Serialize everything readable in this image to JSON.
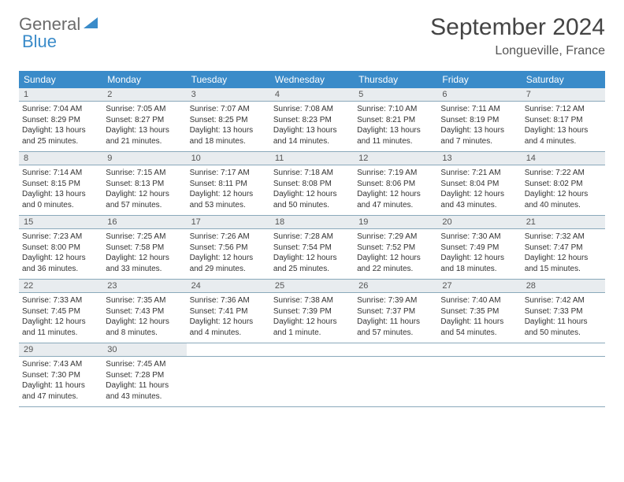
{
  "logo": {
    "text1": "General",
    "text2": "Blue"
  },
  "title": "September 2024",
  "location": "Longueville, France",
  "colors": {
    "header_bg": "#3a8bc9",
    "header_text": "#ffffff",
    "daynum_bg": "#e8ecef",
    "border": "#8aa9bb",
    "body_text": "#333333"
  },
  "day_headers": [
    "Sunday",
    "Monday",
    "Tuesday",
    "Wednesday",
    "Thursday",
    "Friday",
    "Saturday"
  ],
  "weeks": [
    [
      {
        "n": "1",
        "sunrise": "7:04 AM",
        "sunset": "8:29 PM",
        "dl1": "Daylight: 13 hours",
        "dl2": "and 25 minutes."
      },
      {
        "n": "2",
        "sunrise": "7:05 AM",
        "sunset": "8:27 PM",
        "dl1": "Daylight: 13 hours",
        "dl2": "and 21 minutes."
      },
      {
        "n": "3",
        "sunrise": "7:07 AM",
        "sunset": "8:25 PM",
        "dl1": "Daylight: 13 hours",
        "dl2": "and 18 minutes."
      },
      {
        "n": "4",
        "sunrise": "7:08 AM",
        "sunset": "8:23 PM",
        "dl1": "Daylight: 13 hours",
        "dl2": "and 14 minutes."
      },
      {
        "n": "5",
        "sunrise": "7:10 AM",
        "sunset": "8:21 PM",
        "dl1": "Daylight: 13 hours",
        "dl2": "and 11 minutes."
      },
      {
        "n": "6",
        "sunrise": "7:11 AM",
        "sunset": "8:19 PM",
        "dl1": "Daylight: 13 hours",
        "dl2": "and 7 minutes."
      },
      {
        "n": "7",
        "sunrise": "7:12 AM",
        "sunset": "8:17 PM",
        "dl1": "Daylight: 13 hours",
        "dl2": "and 4 minutes."
      }
    ],
    [
      {
        "n": "8",
        "sunrise": "7:14 AM",
        "sunset": "8:15 PM",
        "dl1": "Daylight: 13 hours",
        "dl2": "and 0 minutes."
      },
      {
        "n": "9",
        "sunrise": "7:15 AM",
        "sunset": "8:13 PM",
        "dl1": "Daylight: 12 hours",
        "dl2": "and 57 minutes."
      },
      {
        "n": "10",
        "sunrise": "7:17 AM",
        "sunset": "8:11 PM",
        "dl1": "Daylight: 12 hours",
        "dl2": "and 53 minutes."
      },
      {
        "n": "11",
        "sunrise": "7:18 AM",
        "sunset": "8:08 PM",
        "dl1": "Daylight: 12 hours",
        "dl2": "and 50 minutes."
      },
      {
        "n": "12",
        "sunrise": "7:19 AM",
        "sunset": "8:06 PM",
        "dl1": "Daylight: 12 hours",
        "dl2": "and 47 minutes."
      },
      {
        "n": "13",
        "sunrise": "7:21 AM",
        "sunset": "8:04 PM",
        "dl1": "Daylight: 12 hours",
        "dl2": "and 43 minutes."
      },
      {
        "n": "14",
        "sunrise": "7:22 AM",
        "sunset": "8:02 PM",
        "dl1": "Daylight: 12 hours",
        "dl2": "and 40 minutes."
      }
    ],
    [
      {
        "n": "15",
        "sunrise": "7:23 AM",
        "sunset": "8:00 PM",
        "dl1": "Daylight: 12 hours",
        "dl2": "and 36 minutes."
      },
      {
        "n": "16",
        "sunrise": "7:25 AM",
        "sunset": "7:58 PM",
        "dl1": "Daylight: 12 hours",
        "dl2": "and 33 minutes."
      },
      {
        "n": "17",
        "sunrise": "7:26 AM",
        "sunset": "7:56 PM",
        "dl1": "Daylight: 12 hours",
        "dl2": "and 29 minutes."
      },
      {
        "n": "18",
        "sunrise": "7:28 AM",
        "sunset": "7:54 PM",
        "dl1": "Daylight: 12 hours",
        "dl2": "and 25 minutes."
      },
      {
        "n": "19",
        "sunrise": "7:29 AM",
        "sunset": "7:52 PM",
        "dl1": "Daylight: 12 hours",
        "dl2": "and 22 minutes."
      },
      {
        "n": "20",
        "sunrise": "7:30 AM",
        "sunset": "7:49 PM",
        "dl1": "Daylight: 12 hours",
        "dl2": "and 18 minutes."
      },
      {
        "n": "21",
        "sunrise": "7:32 AM",
        "sunset": "7:47 PM",
        "dl1": "Daylight: 12 hours",
        "dl2": "and 15 minutes."
      }
    ],
    [
      {
        "n": "22",
        "sunrise": "7:33 AM",
        "sunset": "7:45 PM",
        "dl1": "Daylight: 12 hours",
        "dl2": "and 11 minutes."
      },
      {
        "n": "23",
        "sunrise": "7:35 AM",
        "sunset": "7:43 PM",
        "dl1": "Daylight: 12 hours",
        "dl2": "and 8 minutes."
      },
      {
        "n": "24",
        "sunrise": "7:36 AM",
        "sunset": "7:41 PM",
        "dl1": "Daylight: 12 hours",
        "dl2": "and 4 minutes."
      },
      {
        "n": "25",
        "sunrise": "7:38 AM",
        "sunset": "7:39 PM",
        "dl1": "Daylight: 12 hours",
        "dl2": "and 1 minute."
      },
      {
        "n": "26",
        "sunrise": "7:39 AM",
        "sunset": "7:37 PM",
        "dl1": "Daylight: 11 hours",
        "dl2": "and 57 minutes."
      },
      {
        "n": "27",
        "sunrise": "7:40 AM",
        "sunset": "7:35 PM",
        "dl1": "Daylight: 11 hours",
        "dl2": "and 54 minutes."
      },
      {
        "n": "28",
        "sunrise": "7:42 AM",
        "sunset": "7:33 PM",
        "dl1": "Daylight: 11 hours",
        "dl2": "and 50 minutes."
      }
    ],
    [
      {
        "n": "29",
        "sunrise": "7:43 AM",
        "sunset": "7:30 PM",
        "dl1": "Daylight: 11 hours",
        "dl2": "and 47 minutes."
      },
      {
        "n": "30",
        "sunrise": "7:45 AM",
        "sunset": "7:28 PM",
        "dl1": "Daylight: 11 hours",
        "dl2": "and 43 minutes."
      },
      null,
      null,
      null,
      null,
      null
    ]
  ],
  "labels": {
    "sunrise": "Sunrise: ",
    "sunset": "Sunset: "
  }
}
